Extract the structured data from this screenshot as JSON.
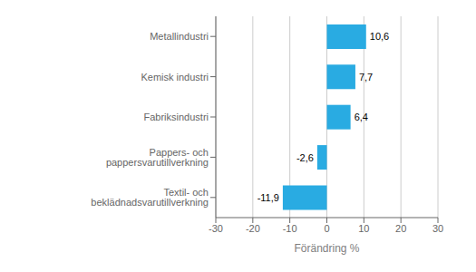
{
  "chart_data": {
    "type": "bar",
    "orientation": "horizontal",
    "categories": [
      "Textil- och beklädnadsvarutillverkning",
      "Pappers- och pappersvarutillverkning",
      "Fabriksindustri",
      "Kemisk industri",
      "Metallindustri"
    ],
    "values": [
      -11.9,
      -2.6,
      6.4,
      7.7,
      10.6
    ],
    "value_labels": [
      "-11,9",
      "-2,6",
      "6,4",
      "7,7",
      "10,6"
    ],
    "data_labels": true,
    "color": "#29abe2",
    "xlabel": "Förändring %",
    "xlim": [
      -30,
      30
    ],
    "xticks": [
      -30,
      -20,
      -10,
      0,
      10,
      20,
      30
    ],
    "grid": true
  }
}
